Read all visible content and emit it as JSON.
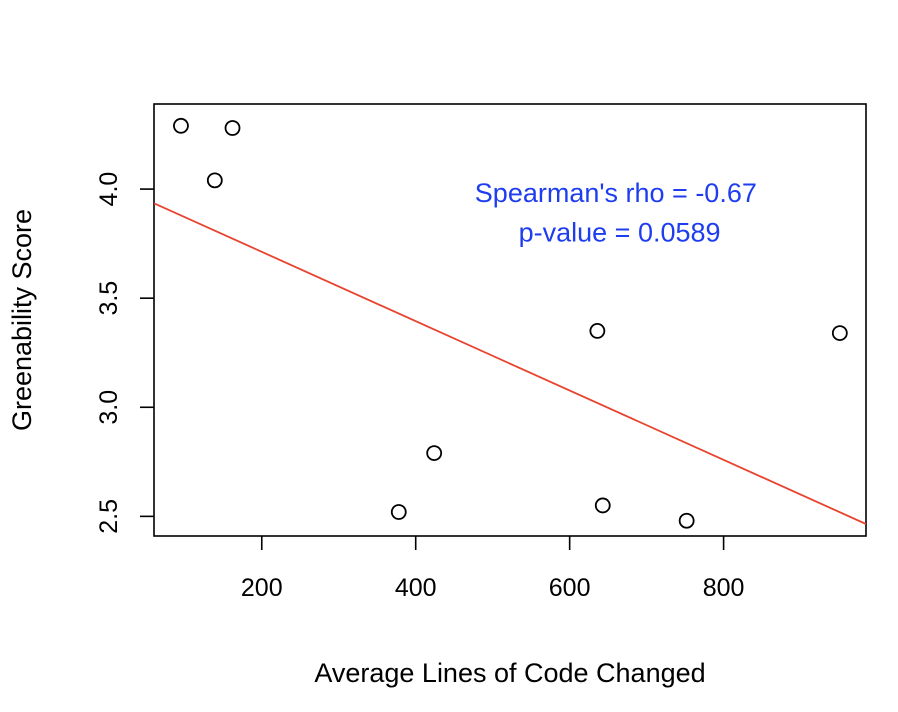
{
  "chart_data": {
    "type": "scatter",
    "title": "",
    "xlabel": "Average Lines of Code Changed",
    "ylabel": "Greenability Score",
    "xlim": [
      60,
      985
    ],
    "ylim": [
      2.41,
      4.39
    ],
    "x_ticks": [
      200,
      400,
      600,
      800
    ],
    "y_ticks": [
      2.5,
      3.0,
      3.5,
      4.0
    ],
    "x_tick_labels": [
      "200",
      "400",
      "600",
      "800"
    ],
    "y_tick_labels": [
      "2.5",
      "3.0",
      "3.5",
      "4.0"
    ],
    "grid": false,
    "legend": "none",
    "points": [
      {
        "x": 95,
        "y": 4.29
      },
      {
        "x": 162,
        "y": 4.28
      },
      {
        "x": 139,
        "y": 4.04
      },
      {
        "x": 636,
        "y": 3.35
      },
      {
        "x": 951,
        "y": 3.34
      },
      {
        "x": 424,
        "y": 2.79
      },
      {
        "x": 378,
        "y": 2.52
      },
      {
        "x": 643,
        "y": 2.55
      },
      {
        "x": 752,
        "y": 2.48
      }
    ],
    "fit_line": {
      "x": [
        60,
        985
      ],
      "y": [
        3.935,
        2.465
      ],
      "color": "#e8432e"
    },
    "annotations": [
      {
        "text": "Spearman's rho = -0.67",
        "x": 660,
        "y": 3.94,
        "color": "#1f3df0"
      },
      {
        "text": " p-value = 0.0589",
        "x": 660,
        "y": 3.76,
        "color": "#1f3df0"
      }
    ],
    "point_color": "#000000",
    "point_style": "open-circle"
  }
}
